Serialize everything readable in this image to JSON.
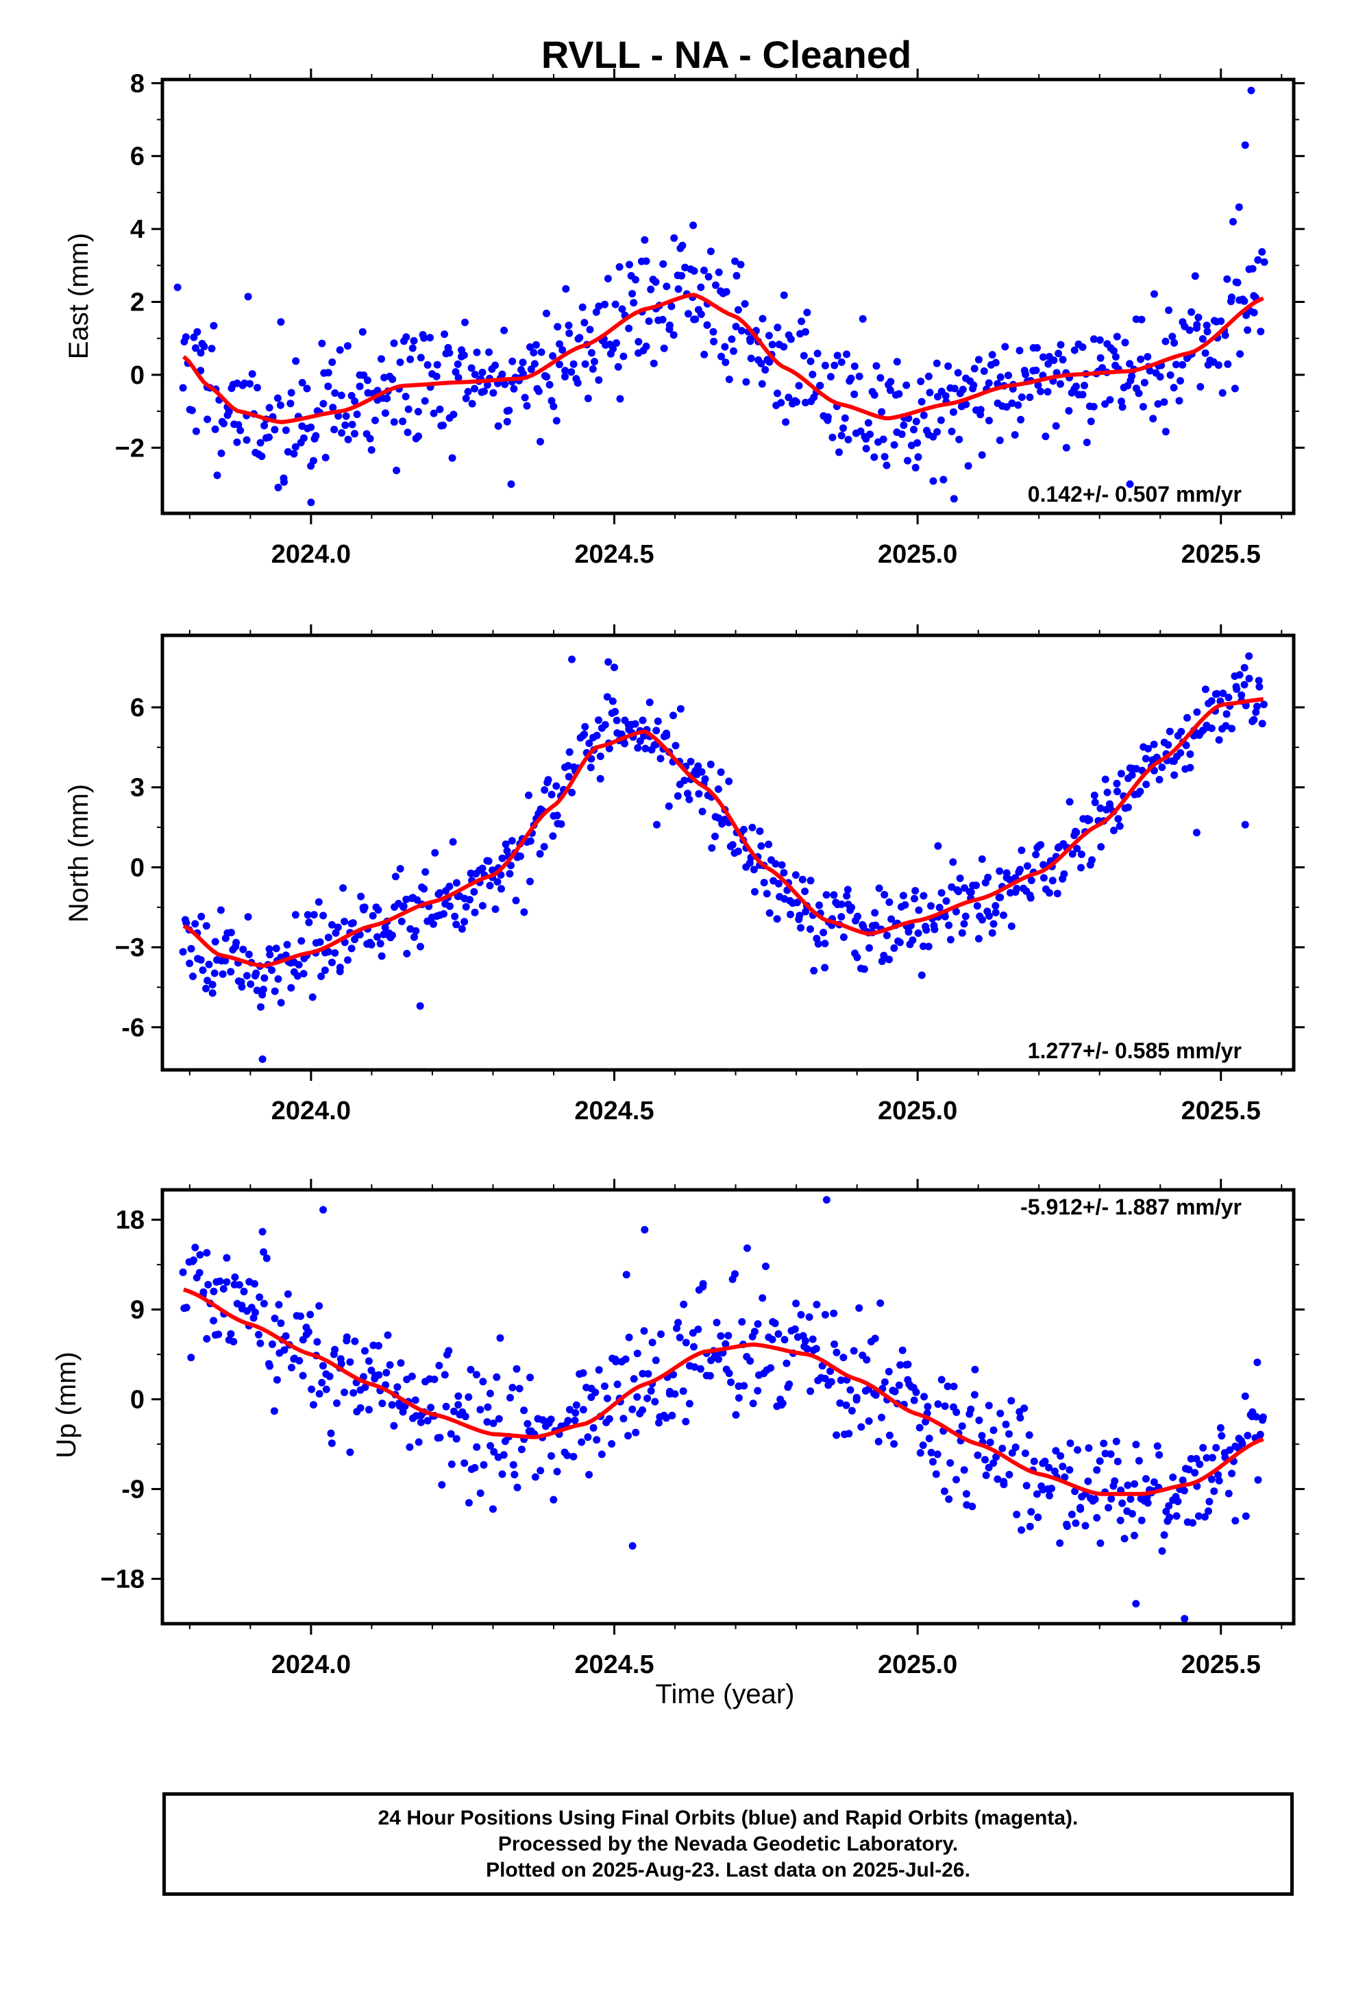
{
  "title": "RVLL  - NA - Cleaned",
  "xlabel": "Time (year)",
  "footer": {
    "line1": "24 Hour Positions Using Final Orbits (blue) and Rapid Orbits (magenta).",
    "line2": "Processed by the Nevada Geodetic Laboratory.",
    "line3": "Plotted on 2025-Aug-23. Last data on 2025-Jul-26."
  },
  "colors": {
    "points": "#0000ff",
    "fit": "#ff0000",
    "frame": "#000000"
  },
  "chart_data": [
    {
      "type": "scatter",
      "ylabel": "East (mm)",
      "rate_text": "0.142+/- 0.507 mm/yr",
      "rate_position": "bottom-right",
      "xlim": [
        2023.755,
        2025.62
      ],
      "ylim": [
        -3.8,
        8.1
      ],
      "xticks": [
        "2024.0",
        "2024.5",
        "2025.0",
        "2025.5"
      ],
      "yticks": [
        "−2",
        "0",
        "2",
        "4",
        "6",
        "8"
      ],
      "ytick_values": [
        -2,
        0,
        2,
        4,
        6,
        8
      ],
      "fit_curve": {
        "x": [
          2023.79,
          2023.83,
          2023.88,
          2023.95,
          2024.05,
          2024.15,
          2024.25,
          2024.35,
          2024.45,
          2024.55,
          2024.63,
          2024.7,
          2024.78,
          2024.87,
          2024.95,
          2025.05,
          2025.15,
          2025.25,
          2025.35,
          2025.45,
          2025.57
        ],
        "y": [
          0.5,
          -0.3,
          -1.0,
          -1.3,
          -1.0,
          -0.3,
          -0.2,
          -0.1,
          0.8,
          1.8,
          2.2,
          1.6,
          0.2,
          -0.8,
          -1.2,
          -0.8,
          -0.3,
          0.0,
          0.1,
          0.6,
          2.1
        ]
      },
      "scatter": {
        "count": 660,
        "noise": 0.9,
        "seed": 11
      },
      "extra_points": {
        "x": [
          2025.55,
          2025.54,
          2025.53,
          2025.52,
          2023.78,
          2024.0,
          2024.33,
          2024.55,
          2024.63,
          2025.06,
          2025.35
        ],
        "y": [
          7.8,
          6.3,
          4.6,
          4.2,
          2.4,
          -3.5,
          -3.0,
          3.7,
          4.1,
          -3.4,
          -3.0
        ]
      }
    },
    {
      "type": "scatter",
      "ylabel": "North (mm)",
      "rate_text": "1.277+/- 0.585 mm/yr",
      "rate_position": "bottom-right",
      "xlim": [
        2023.755,
        2025.62
      ],
      "ylim": [
        -7.6,
        8.7
      ],
      "xticks": [
        "2024.0",
        "2024.5",
        "2025.0",
        "2025.5"
      ],
      "yticks": [
        "-6",
        "−3",
        "0",
        "3",
        "6"
      ],
      "ytick_values": [
        -6,
        -3,
        0,
        3,
        6
      ],
      "fit_curve": {
        "x": [
          2023.79,
          2023.85,
          2023.92,
          2024.0,
          2024.1,
          2024.2,
          2024.3,
          2024.4,
          2024.47,
          2024.55,
          2024.65,
          2024.75,
          2024.85,
          2024.92,
          2025.0,
          2025.1,
          2025.2,
          2025.3,
          2025.4,
          2025.5,
          2025.57
        ],
        "y": [
          -2.2,
          -3.3,
          -3.7,
          -3.2,
          -2.2,
          -1.3,
          -0.3,
          2.3,
          4.5,
          5.1,
          3.0,
          0.0,
          -2.0,
          -2.5,
          -2.0,
          -1.2,
          -0.2,
          1.6,
          4.0,
          6.1,
          6.3
        ]
      },
      "scatter": {
        "count": 660,
        "noise": 0.75,
        "seed": 23
      },
      "extra_points": {
        "x": [
          2023.92,
          2024.18,
          2024.43,
          2024.49,
          2024.5,
          2024.57,
          2025.54,
          2025.46
        ],
        "y": [
          -7.2,
          -5.2,
          7.8,
          7.7,
          7.5,
          1.6,
          1.6,
          1.3
        ]
      }
    },
    {
      "type": "scatter",
      "ylabel": "Up (mm)",
      "rate_text": "-5.912+/- 1.887 mm/yr",
      "rate_position": "top-right",
      "xlim": [
        2023.755,
        2025.62
      ],
      "ylim": [
        -22.5,
        21.0
      ],
      "xticks": [
        "2024.0",
        "2024.5",
        "2025.0",
        "2025.5"
      ],
      "yticks": [
        "−18",
        "-9",
        "0",
        "9",
        "18"
      ],
      "ytick_values": [
        -18,
        -9,
        0,
        9,
        18
      ],
      "fit_curve": {
        "x": [
          2023.79,
          2023.9,
          2024.0,
          2024.1,
          2024.2,
          2024.3,
          2024.37,
          2024.45,
          2024.55,
          2024.65,
          2024.73,
          2024.82,
          2024.9,
          2025.0,
          2025.1,
          2025.2,
          2025.3,
          2025.37,
          2025.45,
          2025.57
        ],
        "y": [
          11.0,
          7.5,
          4.5,
          1.5,
          -1.5,
          -3.5,
          -3.8,
          -2.5,
          1.5,
          4.8,
          5.5,
          4.5,
          2.0,
          -1.5,
          -4.5,
          -7.5,
          -9.5,
          -9.5,
          -8.5,
          -4.0
        ]
      },
      "scatter": {
        "count": 640,
        "noise": 3.2,
        "seed": 37
      },
      "extra_points": {
        "x": [
          2024.02,
          2023.92,
          2024.85,
          2024.53,
          2024.55,
          2025.44,
          2025.56,
          2024.3,
          2024.52,
          2025.36
        ],
        "y": [
          19.0,
          16.8,
          20.0,
          -14.7,
          17.0,
          -22.0,
          3.7,
          -11.0,
          12.5,
          -20.5
        ]
      }
    }
  ]
}
